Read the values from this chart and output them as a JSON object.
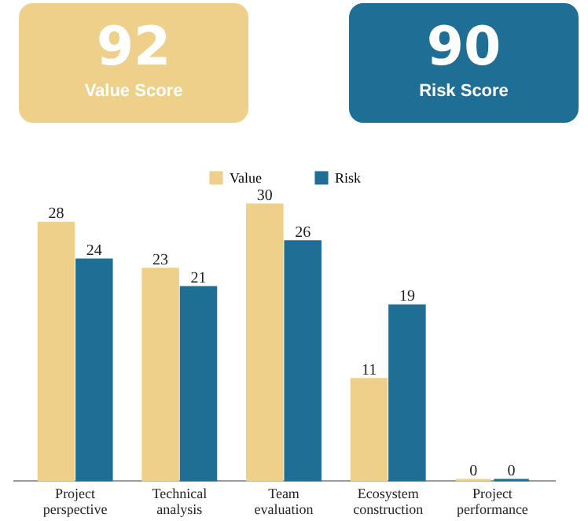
{
  "chart_data": {
    "type": "bar",
    "categories": [
      "Project perspective",
      "Technical analysis",
      "Team evaluation",
      "Ecosystem construction",
      "Project performance"
    ],
    "series": [
      {
        "name": "Value",
        "color": "#efd08a",
        "values": [
          28,
          23,
          30,
          11,
          0
        ]
      },
      {
        "name": "Risk",
        "color": "#1f6e96",
        "values": [
          24,
          21,
          26,
          19,
          0
        ]
      }
    ],
    "data_labels": true,
    "legend": "top",
    "grid": false,
    "annotations": [
      "92",
      "Value Score",
      "90",
      "Risk Score"
    ]
  }
}
